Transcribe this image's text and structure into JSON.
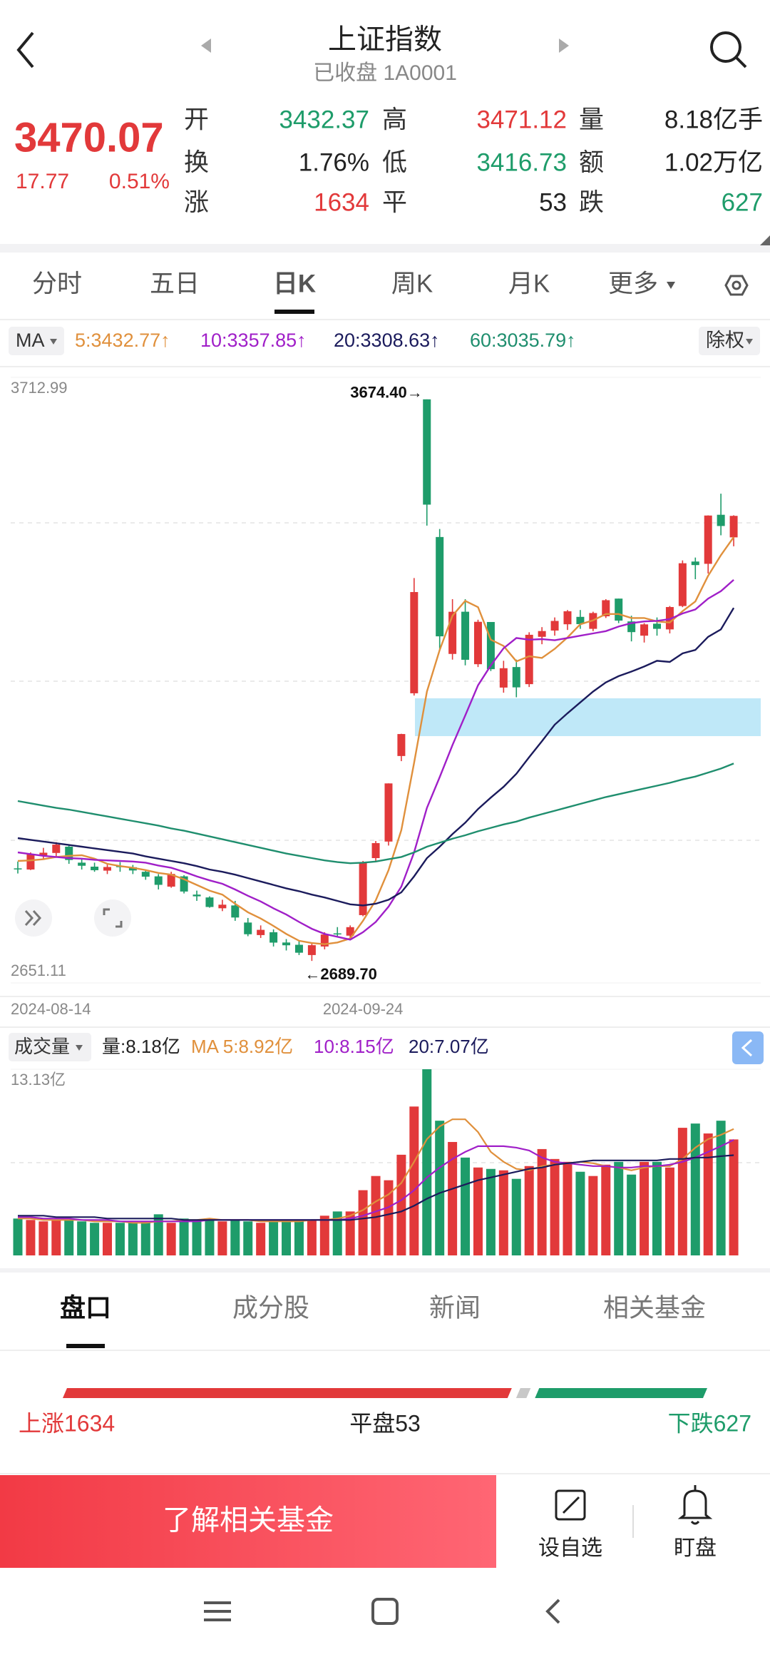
{
  "header": {
    "title": "上证指数",
    "subtitle": "已收盘 1A0001"
  },
  "quote": {
    "price": 3470.07,
    "change": 17.77,
    "change_pct": "0.51%",
    "fields": [
      {
        "label": "开",
        "value": 3432.37,
        "color": "#1e9c6a"
      },
      {
        "label": "高",
        "value": 3471.12,
        "color": "#e2393a"
      },
      {
        "label": "量",
        "value": "8.18亿手",
        "color": "#222222"
      },
      {
        "label": "换",
        "value": "1.76%",
        "color": "#222222"
      },
      {
        "label": "低",
        "value": 3416.73,
        "color": "#1e9c6a"
      },
      {
        "label": "额",
        "value": "1.02万亿",
        "color": "#222222"
      },
      {
        "label": "涨",
        "value": 1634,
        "color": "#e2393a"
      },
      {
        "label": "平",
        "value": 53,
        "color": "#222222"
      },
      {
        "label": "跌",
        "value": 627,
        "color": "#1e9c6a"
      }
    ]
  },
  "tabs": [
    "分时",
    "五日",
    "日K",
    "周K",
    "月K",
    "更多"
  ],
  "chart_data": [
    {
      "type": "candlestick",
      "indicator": "MA",
      "adjust": "除权",
      "categories": [
        "2024-08-14",
        null,
        null,
        null,
        null,
        null,
        null,
        null,
        null,
        null,
        null,
        null,
        null,
        null,
        null,
        null,
        null,
        null,
        null,
        null,
        null,
        null,
        null,
        null,
        null,
        null,
        null,
        "2024-09-24",
        null,
        null,
        null,
        null,
        null,
        null,
        null,
        null,
        null,
        null,
        null,
        null,
        null,
        null,
        null,
        null,
        null,
        null,
        null,
        null,
        null,
        null,
        null,
        null,
        null,
        null,
        null,
        null,
        null
      ],
      "open": [
        2852,
        2850,
        2875,
        2879,
        2890,
        2862,
        2855,
        2848,
        2856,
        2854,
        2846,
        2838,
        2820,
        2838,
        2806,
        2801,
        2782,
        2787,
        2757,
        2735,
        2740,
        2722,
        2718,
        2700,
        2715,
        2738,
        2734,
        2770,
        2870,
        2899,
        3049,
        3159,
        3674.4,
        3433,
        3228,
        3302,
        3210,
        3284,
        3169,
        3205,
        3175,
        3258,
        3269,
        3280,
        3293,
        3272,
        3294,
        3325,
        3285,
        3260,
        3281,
        3271,
        3312,
        3390,
        3386,
        3472,
        3432.37
      ],
      "high": [
        2864,
        2880,
        2888,
        2898,
        2893,
        2869,
        2862,
        2860,
        2863,
        2858,
        2850,
        2842,
        2846,
        2840,
        2813,
        2803,
        2797,
        2795,
        2765,
        2752,
        2745,
        2728,
        2726,
        2721,
        2740,
        2749,
        2752,
        2865,
        2900,
        3001,
        3088,
        3361,
        3674.4,
        3447,
        3324,
        3324,
        3288,
        3284,
        3216,
        3218,
        3266,
        3275,
        3292,
        3305,
        3305,
        3302,
        3324,
        3325,
        3295,
        3282,
        3292,
        3312,
        3392,
        3397,
        3471,
        3509,
        3471.12
      ],
      "low": [
        2843,
        2849,
        2868,
        2872,
        2860,
        2850,
        2846,
        2842,
        2846,
        2842,
        2832,
        2815,
        2818,
        2808,
        2795,
        2783,
        2777,
        2760,
        2733,
        2730,
        2715,
        2708,
        2700,
        2689.7,
        2710,
        2731,
        2729,
        2768,
        2863,
        2892,
        3040,
        3155,
        3453,
        3237,
        3218,
        3208,
        3205,
        3198,
        3160,
        3152,
        3170,
        3245,
        3260,
        3270,
        3272,
        3268,
        3291,
        3282,
        3250,
        3248,
        3260,
        3264,
        3310,
        3359,
        3369,
        3436,
        3416.73
      ],
      "close": [
        2850.65,
        2877.36,
        2879.43,
        2893.67,
        2866.66,
        2856.58,
        2848.77,
        2854.37,
        2855.52,
        2848.32,
        2837.43,
        2823.11,
        2842.21,
        2811.37,
        2802.98,
        2784.28,
        2788.31,
        2765.81,
        2736.49,
        2744.19,
        2721.8,
        2717.12,
        2704.09,
        2717.28,
        2736.02,
        2736.81,
        2748.92,
        2863.13,
        2896.31,
        3000.95,
        3087.53,
        3336.5,
        3489.78,
        3258.86,
        3301.93,
        3217.74,
        3284.32,
        3201.29,
        3202.95,
        3169.38,
        3261.56,
        3268.11,
        3285.87,
        3302.8,
        3280.26,
        3299.7,
        3322.2,
        3286.41,
        3266.24,
        3279.82,
        3272.01,
        3310.21,
        3386.99,
        3383.81,
        3470.66,
        3452.3,
        3470.07
      ],
      "up_color": "#e2393a",
      "down_color": "#1e9c6a",
      "series": [
        {
          "name": "5:3432.77↑",
          "color": "#e0903c",
          "values": [
            2865,
            2866,
            2868,
            2872,
            2874,
            2875,
            2869,
            2860,
            2856,
            2853,
            2849,
            2844,
            2841,
            2833,
            2823,
            2813,
            2806,
            2790,
            2775,
            2764,
            2751,
            2737,
            2725,
            2721,
            2719,
            2722,
            2729,
            2760,
            2796,
            2849,
            2919,
            3037,
            3162,
            3235,
            3295,
            3321,
            3310,
            3253,
            3242,
            3215,
            3224,
            3221,
            3237,
            3257,
            3280,
            3287,
            3298,
            3298,
            3291,
            3291,
            3285,
            3283,
            3303,
            3320,
            3365,
            3401,
            3432.77
          ]
        },
        {
          "name": "10:3357.85↑",
          "color": "#a01fc8",
          "values": [
            2880,
            2877,
            2874,
            2872,
            2870,
            2869,
            2867,
            2866,
            2865,
            2864,
            2862,
            2857,
            2853,
            2846,
            2838,
            2831,
            2825,
            2815,
            2804,
            2794,
            2782,
            2771,
            2758,
            2746,
            2737,
            2732,
            2727,
            2740,
            2758,
            2785,
            2820,
            2880,
            2958,
            3012,
            3068,
            3120,
            3173,
            3208,
            3238,
            3256,
            3253,
            3254,
            3252,
            3256,
            3260,
            3264,
            3268,
            3276,
            3282,
            3285,
            3286,
            3289,
            3299,
            3306,
            3325,
            3338,
            3357.85
          ]
        },
        {
          "name": "20:3308.63↑",
          "color": "#1b1b5c",
          "values": [
            2905,
            2902,
            2899,
            2896,
            2893,
            2890,
            2887,
            2884,
            2881,
            2878,
            2873,
            2869,
            2865,
            2861,
            2856,
            2850,
            2846,
            2841,
            2835,
            2829,
            2823,
            2817,
            2812,
            2806,
            2801,
            2795,
            2789,
            2787,
            2790,
            2797,
            2810,
            2838,
            2870,
            2890,
            2912,
            2932,
            2956,
            2976,
            2995,
            3018,
            3047,
            3075,
            3104,
            3124,
            3143,
            3162,
            3178,
            3189,
            3197,
            3206,
            3216,
            3214,
            3229,
            3235,
            3258,
            3271,
            3308.63
          ]
        },
        {
          "name": "60:3035.79↑",
          "color": "#1f8e6e",
          "values": [
            2970,
            2966,
            2962,
            2958,
            2955,
            2951,
            2947,
            2943,
            2939,
            2935,
            2931,
            2927,
            2922,
            2918,
            2913,
            2908,
            2903,
            2898,
            2893,
            2888,
            2883,
            2878,
            2874,
            2870,
            2866,
            2863,
            2861,
            2862,
            2864,
            2868,
            2872,
            2880,
            2890,
            2897,
            2904,
            2910,
            2917,
            2923,
            2929,
            2934,
            2941,
            2947,
            2953,
            2959,
            2965,
            2971,
            2977,
            2982,
            2987,
            2992,
            2997,
            3002,
            3008,
            3013,
            3020,
            3027,
            3035.79
          ]
        }
      ],
      "ylim": [
        2651.11,
        3712.99
      ],
      "yticks": [
        3712.99,
        2651.11
      ],
      "high_label": "3674.40→",
      "low_label": "←2689.70"
    },
    {
      "type": "bar",
      "indicator": "成交量",
      "volume_label": "量:8.18亿",
      "values": [
        2.6,
        2.5,
        2.4,
        2.5,
        2.5,
        2.4,
        2.3,
        2.3,
        2.3,
        2.3,
        2.4,
        2.9,
        2.3,
        2.6,
        2.5,
        2.6,
        2.4,
        2.5,
        2.4,
        2.3,
        2.5,
        2.4,
        2.5,
        2.5,
        2.8,
        3.1,
        3.1,
        4.6,
        5.6,
        5.3,
        7.1,
        10.5,
        13.13,
        9.5,
        8.0,
        6.9,
        6.2,
        6.1,
        6.0,
        5.4,
        6.3,
        7.5,
        6.8,
        6.6,
        5.9,
        5.6,
        6.4,
        6.6,
        5.7,
        6.6,
        6.6,
        6.2,
        9.0,
        9.3,
        8.6,
        9.5,
        8.18
      ],
      "series": [
        {
          "name": "MA 5:8.92亿",
          "color": "#e0903c",
          "values": [
            2.6,
            2.6,
            2.5,
            2.5,
            2.5,
            2.5,
            2.4,
            2.4,
            2.4,
            2.3,
            2.3,
            2.4,
            2.4,
            2.5,
            2.5,
            2.6,
            2.5,
            2.5,
            2.5,
            2.4,
            2.4,
            2.4,
            2.4,
            2.5,
            2.5,
            2.6,
            2.8,
            3.2,
            3.8,
            4.3,
            5.1,
            6.6,
            8.2,
            9.1,
            9.6,
            9.6,
            8.7,
            7.3,
            6.6,
            6.1,
            6.0,
            6.3,
            6.4,
            6.5,
            6.6,
            6.5,
            6.3,
            6.2,
            6.0,
            6.2,
            6.3,
            6.3,
            6.8,
            7.6,
            8.2,
            8.5,
            8.92
          ]
        },
        {
          "name": "10:8.15亿",
          "color": "#a01fc8",
          "values": [
            2.7,
            2.7,
            2.6,
            2.6,
            2.6,
            2.5,
            2.5,
            2.5,
            2.4,
            2.4,
            2.4,
            2.4,
            2.4,
            2.4,
            2.4,
            2.5,
            2.5,
            2.5,
            2.5,
            2.5,
            2.5,
            2.5,
            2.5,
            2.5,
            2.5,
            2.5,
            2.6,
            2.8,
            3.1,
            3.4,
            3.9,
            4.6,
            5.5,
            6.2,
            6.8,
            7.3,
            7.7,
            7.7,
            7.7,
            7.6,
            7.4,
            6.9,
            6.6,
            6.5,
            6.4,
            6.3,
            6.3,
            6.2,
            6.2,
            6.3,
            6.3,
            6.4,
            6.6,
            6.9,
            7.3,
            7.7,
            8.15
          ]
        },
        {
          "name": "20:7.07亿",
          "color": "#1b1b5c",
          "values": [
            2.8,
            2.8,
            2.8,
            2.7,
            2.7,
            2.7,
            2.7,
            2.6,
            2.6,
            2.6,
            2.6,
            2.6,
            2.6,
            2.5,
            2.5,
            2.5,
            2.5,
            2.5,
            2.5,
            2.5,
            2.5,
            2.5,
            2.5,
            2.5,
            2.5,
            2.5,
            2.5,
            2.6,
            2.7,
            2.9,
            3.1,
            3.5,
            4.0,
            4.4,
            4.7,
            5.0,
            5.3,
            5.5,
            5.7,
            5.9,
            6.1,
            6.2,
            6.4,
            6.5,
            6.6,
            6.7,
            6.7,
            6.7,
            6.7,
            6.7,
            6.7,
            6.8,
            6.8,
            6.9,
            6.9,
            7.0,
            7.07
          ]
        }
      ],
      "ylim": [
        0,
        13.13
      ],
      "yticks": [
        {
          "value": 13.13,
          "label": "13.13亿"
        }
      ]
    }
  ],
  "lower_tabs": [
    "盘口",
    "成分股",
    "新闻",
    "相关基金"
  ],
  "breadth": {
    "up": "上涨1634",
    "flat": "平盘53",
    "down": "下跌627"
  },
  "actions": {
    "primary": "了解相关基金",
    "items": [
      "设自选",
      "盯盘"
    ]
  }
}
